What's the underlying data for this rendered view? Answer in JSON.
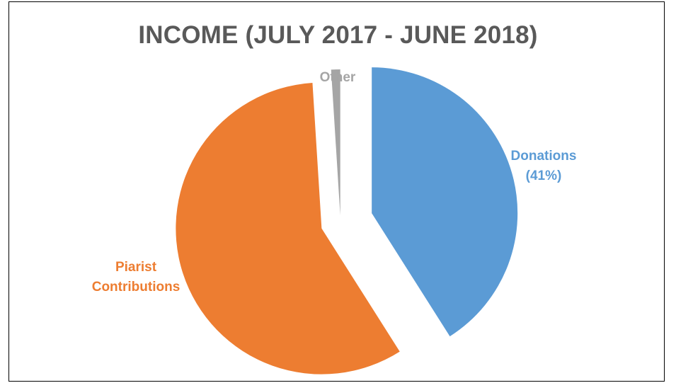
{
  "chart_data": {
    "type": "pie",
    "title": "INCOME (JULY 2017 - JUNE 2018)",
    "slices": [
      {
        "name": "Donations",
        "value": 41,
        "label_lines": [
          "Donations",
          "(41%)"
        ],
        "color": "#5b9bd5",
        "label_color": "#5b9bd5"
      },
      {
        "name": "Piarist Contributions",
        "value": 58,
        "label_lines": [
          "Piarist",
          "Contributions"
        ],
        "color": "#ed7d31",
        "label_color": "#ed7d31"
      },
      {
        "name": "Other",
        "value": 1,
        "label_lines": [
          "Other"
        ],
        "color": "#a5a5a5",
        "label_color": "#a5a5a5"
      }
    ],
    "exploded": true,
    "legend": "none"
  }
}
